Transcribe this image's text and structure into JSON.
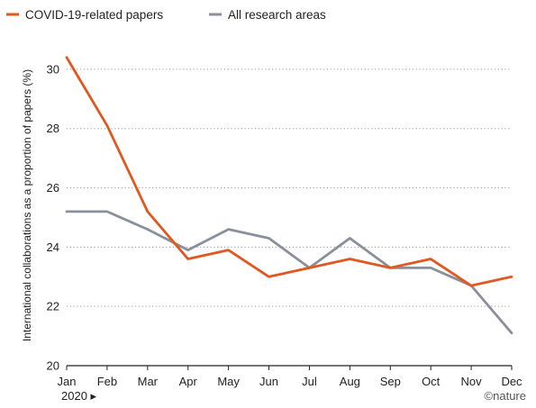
{
  "chart_data": {
    "type": "line",
    "title": "",
    "xlabel": "",
    "ylabel": "International collaborations as a proportion of papers (%)",
    "categories": [
      "Jan",
      "Feb",
      "Mar",
      "Apr",
      "May",
      "Jun",
      "Jul",
      "Aug",
      "Sep",
      "Oct",
      "Nov",
      "Dec"
    ],
    "year_label": "2020 ▸",
    "ylim": [
      20,
      31
    ],
    "yticks": [
      20,
      22,
      24,
      26,
      28,
      30
    ],
    "grid": true,
    "legend_position": "top-left",
    "series": [
      {
        "name": "COVID-19-related papers",
        "color": "#e2571f",
        "values": [
          30.4,
          28.1,
          25.2,
          23.6,
          23.9,
          23.0,
          23.3,
          23.6,
          23.3,
          23.6,
          22.7,
          23.0
        ]
      },
      {
        "name": "All research areas",
        "color": "#8a8f9c",
        "values": [
          25.2,
          25.2,
          24.6,
          23.9,
          24.6,
          24.3,
          23.3,
          24.3,
          23.3,
          23.3,
          22.7,
          21.1
        ]
      }
    ],
    "credit": "©nature"
  }
}
